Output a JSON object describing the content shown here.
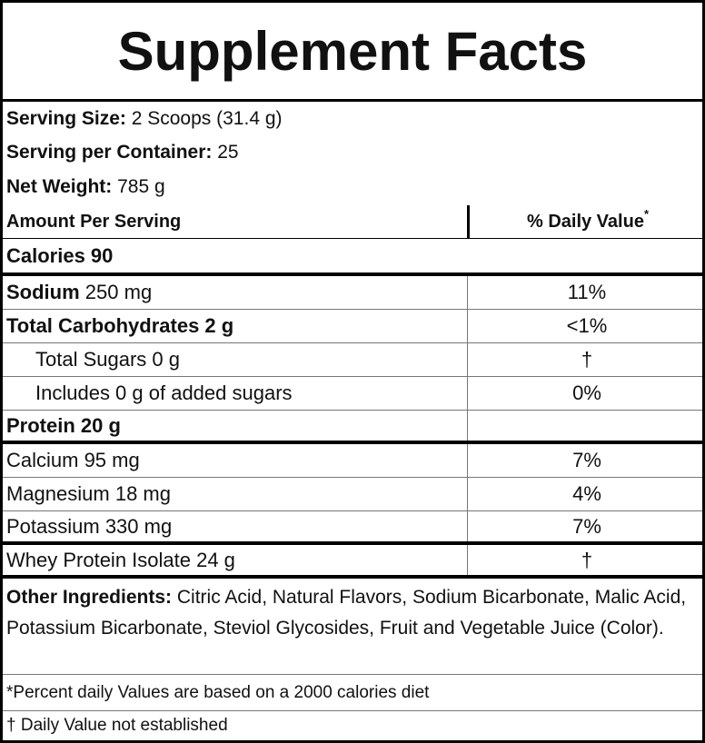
{
  "title": "Supplement Facts",
  "serving": [
    {
      "label": "Serving Size:",
      "value": "2 Scoops (31.4 g)"
    },
    {
      "label": "Serving per Container:",
      "value": "25"
    },
    {
      "label": "Net Weight:",
      "value": "785 g"
    }
  ],
  "header": {
    "amount": "Amount Per Serving",
    "daily": "% Daily Value",
    "mark": "*"
  },
  "calories": "Calories 90",
  "rows": [
    {
      "bold": "Sodium",
      "text": "250 mg",
      "dv": "11%"
    },
    {
      "bold": "Total Carbohydrates 2 g",
      "dv": "<1%"
    },
    {
      "text": "Total Sugars 0 g",
      "dv": "†",
      "indent": true
    },
    {
      "text": "Includes 0 g of added sugars",
      "dv": "0%",
      "indent": true
    },
    {
      "bold": "Protein 20 g"
    },
    {
      "text": "Calcium 95 mg",
      "dv": "7%"
    },
    {
      "text": "Magnesium 18 mg",
      "dv": "4%"
    },
    {
      "text": "Potassium 330 mg",
      "dv": "7%"
    },
    {
      "text": "Whey Protein Isolate 24 g",
      "dv": "†"
    }
  ],
  "other": {
    "label": "Other Ingredients:",
    "text": "Citric Acid, Natural Flavors, Sodium Bicarbonate, Malic Acid, Potassium Bicarbonate, Steviol Glycosides, Fruit and Vegetable Juice (Color)."
  },
  "footnotes": [
    "*Percent daily Values are based on a 2000 calories diet",
    "† Daily Value not established"
  ]
}
